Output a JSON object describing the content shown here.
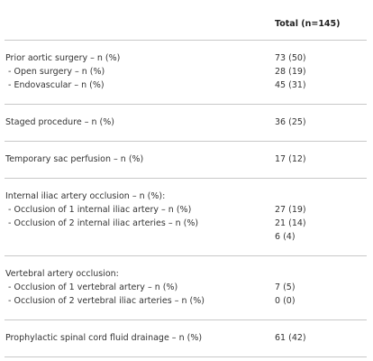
{
  "table": {
    "header": "Total (n=145)",
    "groups": [
      {
        "rows": [
          [
            "Prior aortic surgery – n (%)",
            "73 (50)"
          ],
          [
            " - Open surgery – n (%)",
            "28 (19)"
          ],
          [
            " - Endovascular – n (%)",
            "45 (31)"
          ]
        ]
      },
      {
        "rows": [
          [
            "Staged procedure – n (%)",
            "36 (25)"
          ]
        ]
      },
      {
        "rows": [
          [
            "Temporary sac perfusion – n (%)",
            "17 (12)"
          ]
        ]
      },
      {
        "rows": [
          [
            "Internal iliac artery occlusion – n (%):",
            null
          ],
          [
            " - Occlusion of 1 internal iliac artery – n (%)",
            "27 (19)"
          ],
          [
            " - Occlusion of 2 internal iliac arteries – n (%)",
            "21 (14)"
          ],
          [
            null,
            "6 (4)"
          ]
        ]
      },
      {
        "rows": [
          [
            "Vertebral artery occlusion:",
            null
          ],
          [
            " - Occlusion of 1 vertebral artery – n (%)",
            "7 (5)"
          ],
          [
            " - Occlusion of 2 vertebral iliac arteries – n (%)",
            "0 (0)"
          ]
        ]
      },
      {
        "rows": [
          [
            "Prophylactic spinal cord fluid drainage – n (%)",
            "61 (42)"
          ]
        ]
      }
    ]
  }
}
